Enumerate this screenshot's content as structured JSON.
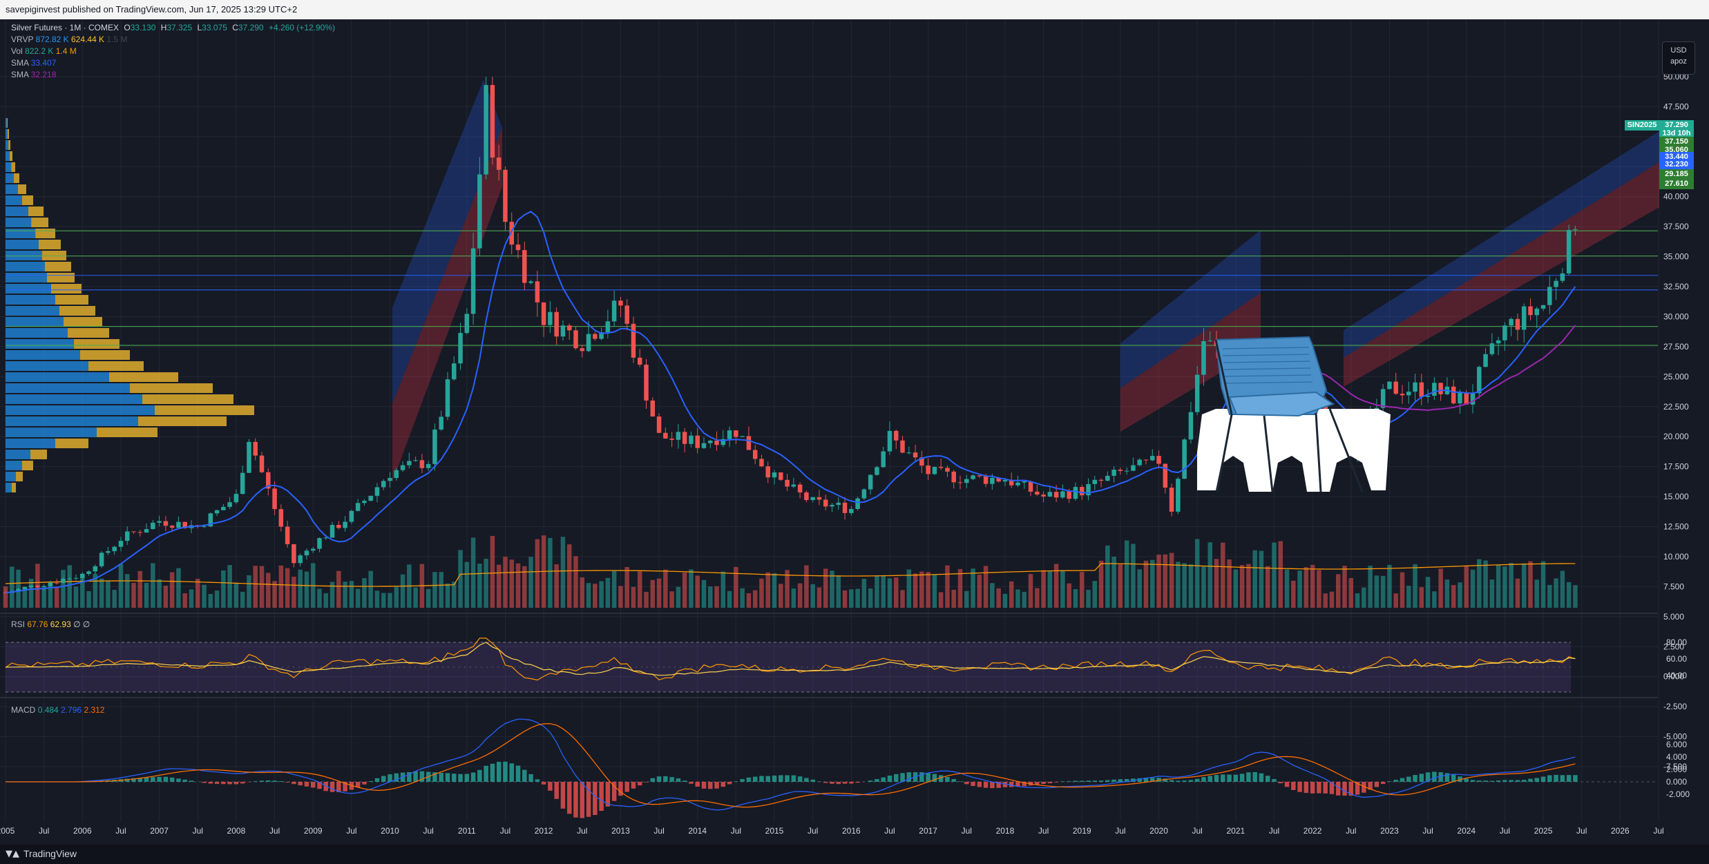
{
  "header": {
    "published": "savepiginvest published on TradingView.com, Jun 17, 2025 13:29 UTC+2"
  },
  "legend": {
    "symbol": "Silver Futures · 1M · COMEX",
    "open_label": "O",
    "open": "33.130",
    "high_label": "H",
    "high": "37.325",
    "low_label": "L",
    "low": "33.075",
    "close_label": "C",
    "close": "37.290",
    "change": "+4.260 (+12.90%)",
    "vrvp_label": "VRVP",
    "vrvp_1": "872.82 K",
    "vrvp_2": "624.44 K",
    "vrvp_3": "1.5 M",
    "vol_label": "Vol",
    "vol_1": "822.2 K",
    "vol_2": "1.4 M",
    "sma1_label": "SMA",
    "sma1": "33.407",
    "sma2_label": "SMA",
    "sma2": "32.218",
    "rsi_label": "RSI",
    "rsi_1": "67.76",
    "rsi_2": "62.93",
    "rsi_3": "∅",
    "rsi_4": "∅",
    "macd_label": "MACD",
    "macd_1": "0.484",
    "macd_2": "2.796",
    "macd_3": "2.312"
  },
  "currency": {
    "code": "USD",
    "sub": "apoz"
  },
  "price_tags": [
    {
      "text": "SIN2025",
      "color": "#22ab94"
    },
    {
      "text": "37.290",
      "color": "#22ab94"
    },
    {
      "text": "13d 10h",
      "color": "#22ab94"
    },
    {
      "text": "37.150",
      "color": "#2e7d32"
    },
    {
      "text": "35.060",
      "color": "#2e7d32"
    },
    {
      "text": "33.440",
      "color": "#2962ff"
    },
    {
      "text": "32.230",
      "color": "#2962ff"
    },
    {
      "text": "29.185",
      "color": "#2e7d32"
    },
    {
      "text": "27.610",
      "color": "#2e7d32"
    }
  ],
  "price_axis": [
    "50.000",
    "47.500",
    "45.000",
    "42.500",
    "40.000",
    "37.500",
    "35.000",
    "32.500",
    "30.000",
    "27.500",
    "25.000",
    "22.500",
    "20.000",
    "17.500",
    "15.000",
    "12.500",
    "10.000",
    "7.500",
    "5.000",
    "2.500",
    "0.000",
    "-2.500",
    "-5.000",
    "-7.500"
  ],
  "rsi_axis": [
    "80.00",
    "60.00",
    "40.00"
  ],
  "macd_axis": [
    "6.000",
    "4.000",
    "2.000",
    "0.000",
    "-2.000"
  ],
  "time_axis": [
    "2005",
    "Jul",
    "2006",
    "Jul",
    "2007",
    "Jul",
    "2008",
    "Jul",
    "2009",
    "Jul",
    "2010",
    "Jul",
    "2011",
    "Jul",
    "2012",
    "Jul",
    "2013",
    "Jul",
    "2014",
    "Jul",
    "2015",
    "Jul",
    "2016",
    "Jul",
    "2017",
    "Jul",
    "2018",
    "Jul",
    "2019",
    "Jul",
    "2020",
    "Jul",
    "2021",
    "Jul",
    "2022",
    "Jul",
    "2023",
    "Jul",
    "2024",
    "Jul",
    "2025",
    "Jul",
    "2026",
    "Jul"
  ],
  "footer": {
    "brand": "TradingView"
  },
  "colors": {
    "up": "#26a69a",
    "down": "#ef5350",
    "sma_blue": "#2962ff",
    "sma_purple": "#9c27b0",
    "volume_ma": "#ff9800"
  },
  "chart_data": {
    "type": "candlestick",
    "instrument": "Silver Futures · 1M · COMEX",
    "x_range": [
      "2005",
      "Jul 2026"
    ],
    "ylim": [
      -7.5,
      50
    ],
    "approx_monthly_close_path": [
      [
        "2005",
        7.0
      ],
      [
        "2006",
        8.5
      ],
      [
        "Jul 2006",
        11.5
      ],
      [
        "2007",
        13
      ],
      [
        "Jul 2007",
        12.5
      ],
      [
        "2008",
        15
      ],
      [
        "Mar 2008",
        20
      ],
      [
        "Oct 2008",
        9.5
      ],
      [
        "2009",
        11
      ],
      [
        "Jul 2009",
        13.5
      ],
      [
        "2010",
        17
      ],
      [
        "Jul 2010",
        18
      ],
      [
        "2011",
        30
      ],
      [
        "Apr 2011",
        48
      ],
      [
        "Jul 2011",
        38
      ],
      [
        "2012",
        30
      ],
      [
        "Jul 2012",
        28
      ],
      [
        "2013",
        31
      ],
      [
        "Jul 2013",
        20
      ],
      [
        "2014",
        19.5
      ],
      [
        "Jul 2014",
        20.5
      ],
      [
        "2015",
        16.5
      ],
      [
        "Jul 2015",
        14.5
      ],
      [
        "2016",
        14
      ],
      [
        "Jul 2016",
        20
      ],
      [
        "2017",
        17
      ],
      [
        "Jul 2017",
        16.5
      ],
      [
        "2018",
        16.5
      ],
      [
        "Jul 2018",
        15
      ],
      [
        "2019",
        15.5
      ],
      [
        "Jul 2019",
        17
      ],
      [
        "2020",
        18
      ],
      [
        "Mar 2020",
        14
      ],
      [
        "Aug 2020",
        28
      ],
      [
        "2021",
        26
      ],
      [
        "Jul 2021",
        25
      ],
      [
        "2022",
        23
      ],
      [
        "Jul 2022",
        19
      ],
      [
        "2023",
        24
      ],
      [
        "Jul 2023",
        24
      ],
      [
        "2024",
        23
      ],
      [
        "Jul 2024",
        29
      ],
      [
        "2025",
        31
      ],
      [
        "Jun 2025",
        37.29
      ]
    ],
    "horizontal_levels": [
      37.15,
      35.06,
      33.44,
      32.23,
      29.185,
      27.61
    ],
    "rsi": {
      "values": [
        67.76,
        62.93
      ],
      "ylim": [
        30,
        90
      ]
    },
    "macd": {
      "values": [
        0.484,
        2.796,
        2.312
      ],
      "ylim": [
        -3,
        7
      ]
    }
  }
}
